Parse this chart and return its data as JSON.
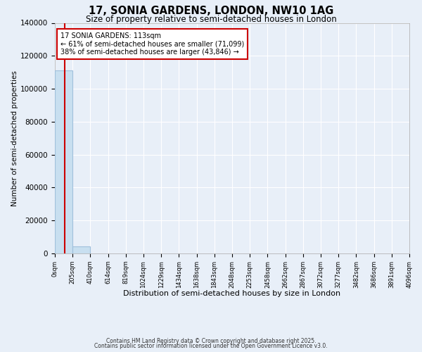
{
  "title": "17, SONIA GARDENS, LONDON, NW10 1AG",
  "subtitle": "Size of property relative to semi-detached houses in London",
  "xlabel": "Distribution of semi-detached houses by size in London",
  "ylabel": "Number of semi-detached properties",
  "property_size": 113,
  "property_label": "17 SONIA GARDENS: 113sqm",
  "pct_smaller": 61,
  "count_smaller": 71099,
  "pct_larger": 38,
  "count_larger": 43846,
  "bin_edges": [
    0,
    205,
    410,
    614,
    819,
    1024,
    1229,
    1434,
    1638,
    1843,
    2048,
    2253,
    2458,
    2662,
    2867,
    3072,
    3277,
    3482,
    3686,
    3891,
    4096
  ],
  "bin_labels": [
    "0sqm",
    "205sqm",
    "410sqm",
    "614sqm",
    "819sqm",
    "1024sqm",
    "1229sqm",
    "1434sqm",
    "1638sqm",
    "1843sqm",
    "2048sqm",
    "2253sqm",
    "2458sqm",
    "2662sqm",
    "2867sqm",
    "3072sqm",
    "3277sqm",
    "3482sqm",
    "3686sqm",
    "3891sqm",
    "4096sqm"
  ],
  "bar_heights": [
    110945,
    4154,
    0,
    0,
    0,
    0,
    0,
    0,
    0,
    0,
    0,
    0,
    0,
    0,
    0,
    0,
    0,
    0,
    0,
    0
  ],
  "bar_color": "#c8dff0",
  "bar_edge_color": "#a0c0dc",
  "vline_color": "#cc0000",
  "vline_position": 113,
  "ylim": [
    0,
    140000
  ],
  "yticks": [
    0,
    20000,
    40000,
    60000,
    80000,
    100000,
    120000,
    140000
  ],
  "bg_color": "#e8eff8",
  "axes_bg_color": "#e8eff8",
  "grid_color": "#ffffff",
  "annotation_box_color": "#cc0000",
  "footer_line1": "Contains HM Land Registry data © Crown copyright and database right 2025.",
  "footer_line2": "Contains public sector information licensed under the Open Government Licence v3.0."
}
